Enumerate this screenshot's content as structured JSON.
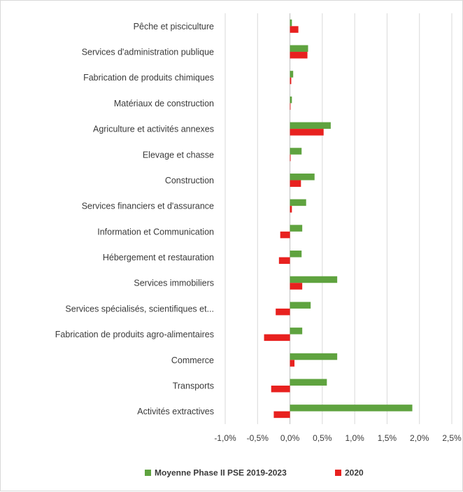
{
  "chart_data": {
    "type": "bar",
    "orientation": "horizontal",
    "categories": [
      "Pêche et pisciculture",
      "Services d'administration publique",
      "Fabrication de produits chimiques",
      "Matériaux de construction",
      "Agriculture et activités annexes",
      "Elevage et chasse",
      "Construction",
      "Services financiers et d'assurance",
      "Information et Communication",
      "Hébergement et restauration",
      "Services immobiliers",
      "Services spécialisés, scientifiques et...",
      "Fabrication de produits agro-alimentaires",
      "Commerce",
      "Transports",
      "Activités extractives"
    ],
    "series": [
      {
        "name": "Moyenne Phase II PSE 2019-2023",
        "color": "#5fa33f",
        "values": [
          0.03,
          0.28,
          0.05,
          0.03,
          0.63,
          0.18,
          0.38,
          0.25,
          0.19,
          0.18,
          0.73,
          0.32,
          0.19,
          0.73,
          0.57,
          1.89
        ]
      },
      {
        "name": "2020",
        "color": "#e8211f",
        "values": [
          0.13,
          0.27,
          0.02,
          0.0,
          0.52,
          0.01,
          0.17,
          0.03,
          -0.15,
          -0.17,
          0.19,
          -0.22,
          -0.4,
          0.07,
          -0.29,
          -0.25
        ]
      }
    ],
    "xlim": [
      -1.0,
      2.5
    ],
    "x_ticks": [
      -1.0,
      -0.5,
      0.0,
      0.5,
      1.0,
      1.5,
      2.0,
      2.5
    ],
    "x_tick_labels": [
      "-1,0%",
      "-0,5%",
      "0,0%",
      "0,5%",
      "1,0%",
      "1,5%",
      "2,0%",
      "2,5%"
    ],
    "grid": true,
    "legend_position": "bottom",
    "title": "",
    "xlabel": "",
    "ylabel": ""
  }
}
